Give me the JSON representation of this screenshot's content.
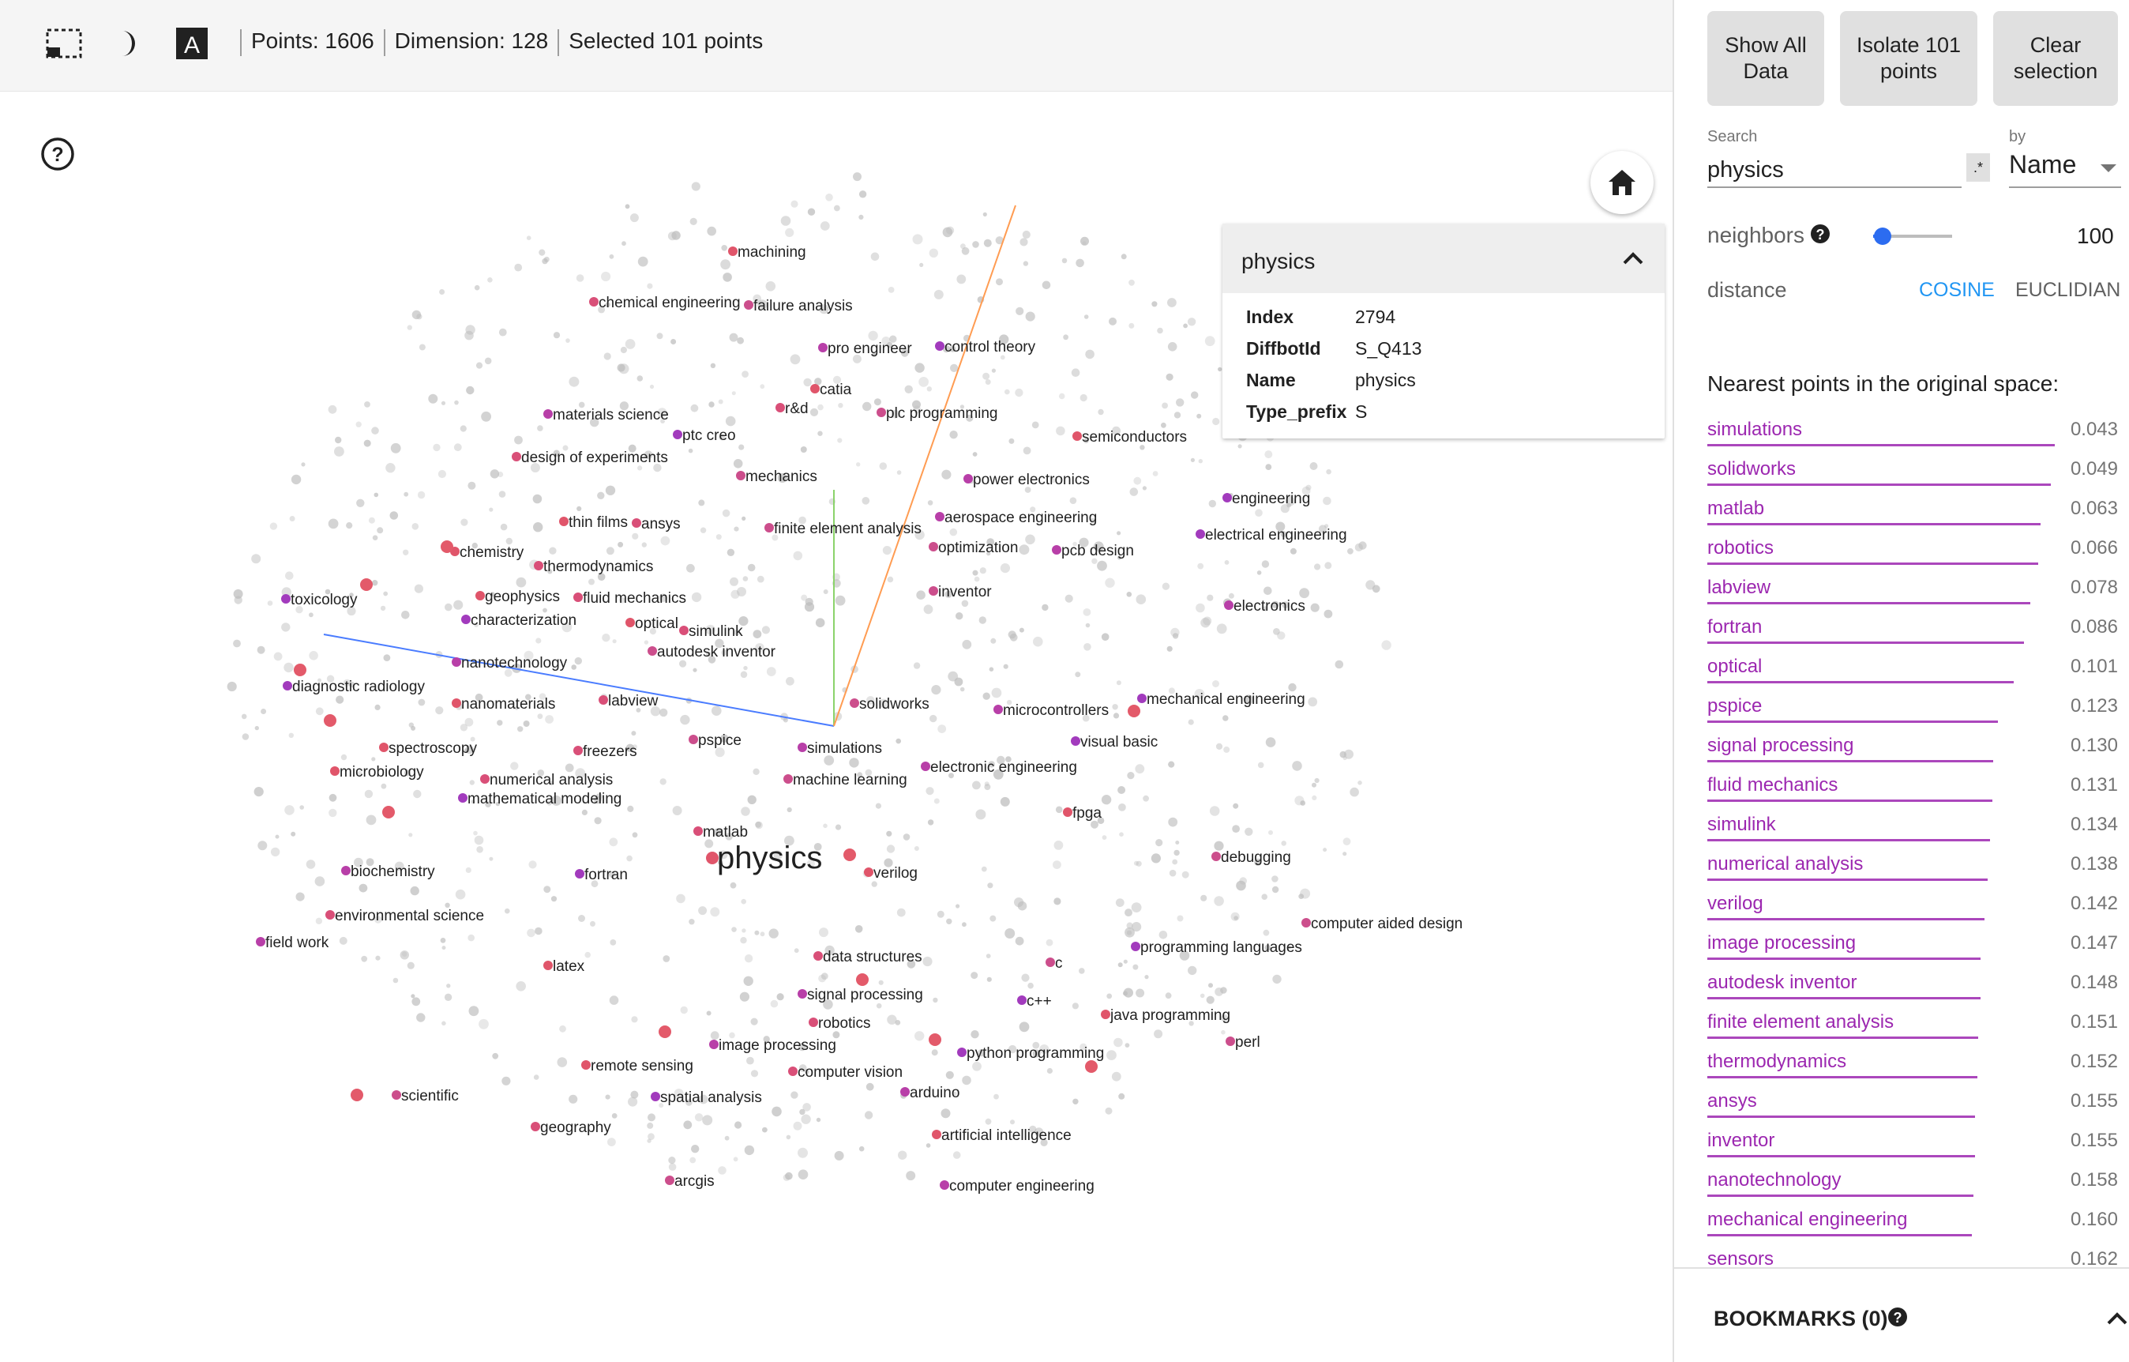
{
  "toolbar": {
    "icons": [
      "selection-mode-icon",
      "night-mode-icon",
      "label-toggle-icon"
    ],
    "points_label": "Points: 1606",
    "dimension_label": "Dimension: 128",
    "selected_label": "Selected 101 points"
  },
  "info_card": {
    "title": "physics",
    "fields": [
      {
        "key": "Index",
        "value": "2794"
      },
      {
        "key": "DiffbotId",
        "value": "S_Q413"
      },
      {
        "key": "Name",
        "value": "physics"
      },
      {
        "key": "Type_prefix",
        "value": "S"
      }
    ]
  },
  "right_panel": {
    "buttons": {
      "show_all": "Show All\nData",
      "isolate": "Isolate 101\npoints",
      "clear": "Clear\nselection"
    },
    "search": {
      "label": "Search",
      "value": "physics",
      "regex_label": ".*"
    },
    "by": {
      "label": "by",
      "value": "Name"
    },
    "neighbors": {
      "label": "neighbors",
      "value": "100",
      "fraction": 0.12
    },
    "distance": {
      "label": "distance",
      "cosine": "COSINE",
      "euclidean": "EUCLIDIAN",
      "active": "cosine"
    },
    "nearest_title": "Nearest points in the original space:",
    "nearest": [
      {
        "name": "simulations",
        "value": "0.043"
      },
      {
        "name": "solidworks",
        "value": "0.049"
      },
      {
        "name": "matlab",
        "value": "0.063"
      },
      {
        "name": "robotics",
        "value": "0.066"
      },
      {
        "name": "labview",
        "value": "0.078"
      },
      {
        "name": "fortran",
        "value": "0.086"
      },
      {
        "name": "optical",
        "value": "0.101"
      },
      {
        "name": "pspice",
        "value": "0.123"
      },
      {
        "name": "signal processing",
        "value": "0.130"
      },
      {
        "name": "fluid mechanics",
        "value": "0.131"
      },
      {
        "name": "simulink",
        "value": "0.134"
      },
      {
        "name": "numerical analysis",
        "value": "0.138"
      },
      {
        "name": "verilog",
        "value": "0.142"
      },
      {
        "name": "image processing",
        "value": "0.147"
      },
      {
        "name": "autodesk inventor",
        "value": "0.148"
      },
      {
        "name": "finite element analysis",
        "value": "0.151"
      },
      {
        "name": "thermodynamics",
        "value": "0.152"
      },
      {
        "name": "ansys",
        "value": "0.155"
      },
      {
        "name": "inventor",
        "value": "0.155"
      },
      {
        "name": "nanotechnology",
        "value": "0.158"
      },
      {
        "name": "mechanical engineering",
        "value": "0.160"
      },
      {
        "name": "sensors",
        "value": "0.162"
      }
    ],
    "bookmarks_label": "BOOKMARKS (0)"
  },
  "plot": {
    "focus_label": "physics",
    "labels": [
      "machining",
      "chemical engineering",
      "failure analysis",
      "pro engineer",
      "control theory",
      "catia",
      "r&d",
      "plc programming",
      "materials science",
      "ptc creo",
      "semiconductors",
      "design of experiments",
      "mechanics",
      "power electronics",
      "engineering",
      "thin films",
      "ansys",
      "finite element analysis",
      "aerospace engineering",
      "electrical engineering",
      "chemistry",
      "thermodynamics",
      "optimization",
      "pcb design",
      "toxicology",
      "geophysics",
      "fluid mechanics",
      "inventor",
      "electronics",
      "characterization",
      "optical",
      "simulink",
      "autodesk inventor",
      "nanotechnology",
      "diagnostic radiology",
      "nanomaterials",
      "labview",
      "solidworks",
      "microcontrollers",
      "mechanical engineering",
      "spectroscopy",
      "freezers",
      "pspice",
      "simulations",
      "visual basic",
      "microbiology",
      "numerical analysis",
      "machine learning",
      "electronic engineering",
      "mathematical modeling",
      "fpga",
      "matlab",
      "debugging",
      "biochemistry",
      "fortran",
      "verilog",
      "environmental science",
      "computer aided design",
      "field work",
      "programming languages",
      "latex",
      "data structures",
      "c",
      "signal processing",
      "c++",
      "java programming",
      "robotics",
      "perl",
      "image processing",
      "python programming",
      "remote sensing",
      "computer vision",
      "scientific",
      "arduino",
      "spatial analysis",
      "artificial intelligence",
      "geography",
      "arcgis",
      "computer engineering"
    ]
  }
}
